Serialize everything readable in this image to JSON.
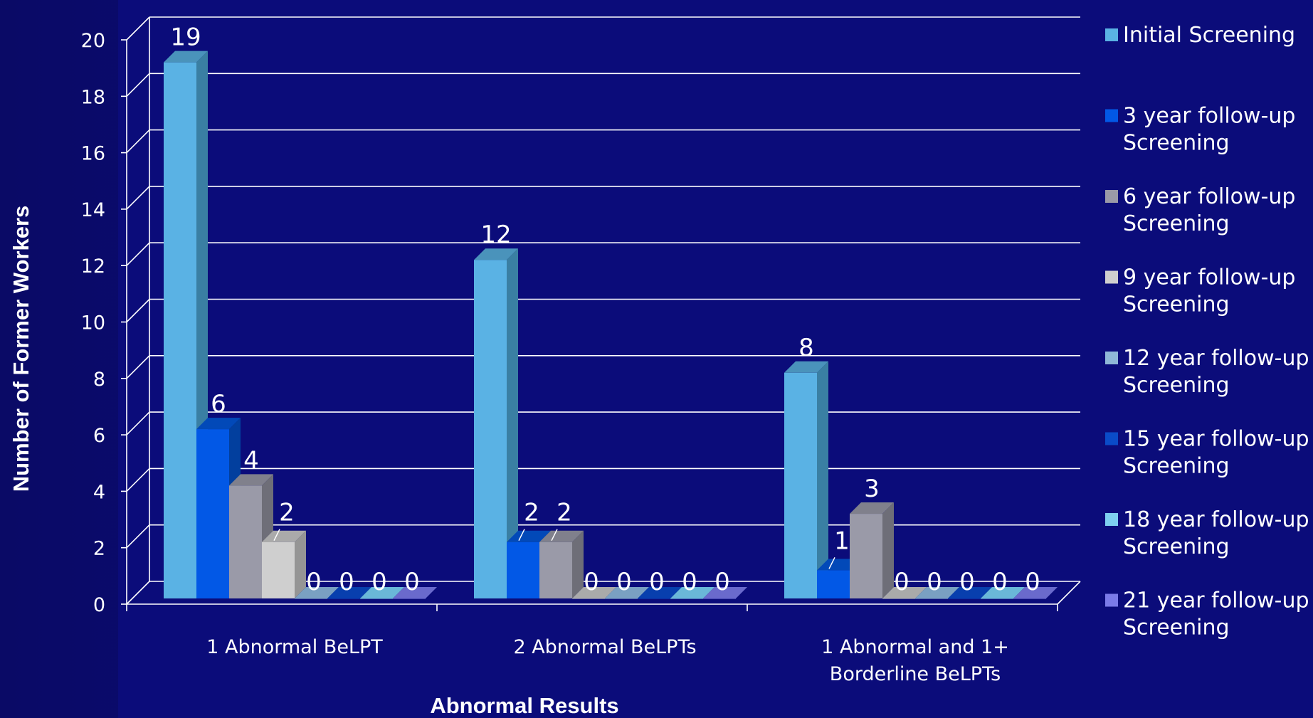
{
  "chart_data": {
    "type": "bar",
    "title": "",
    "xlabel": "Abnormal Results",
    "ylabel": "Number of Former Workers",
    "ylim": [
      0,
      20
    ],
    "yticks": [
      0,
      2,
      4,
      6,
      8,
      10,
      12,
      14,
      16,
      18,
      20
    ],
    "grid": true,
    "legend_position": "right",
    "categories": [
      [
        "1 Abnormal BeLPT"
      ],
      [
        "2 Abnormal BeLPTs"
      ],
      [
        "1 Abnormal and 1+",
        "Borderline BeLPTs"
      ]
    ],
    "series": [
      {
        "name": [
          "Initial Screening"
        ],
        "values": [
          19,
          12,
          8
        ],
        "color": "#5ab2e4",
        "side": "#3a7fa3",
        "top": "#4a93bb"
      },
      {
        "name": [
          "3 year follow-up",
          "Screening"
        ],
        "values": [
          6,
          2,
          1
        ],
        "color": "#0258e6",
        "side": "#023f9e",
        "top": "#0249b8"
      },
      {
        "name": [
          "6 year follow-up",
          "Screening"
        ],
        "values": [
          4,
          2,
          3
        ],
        "color": "#9a9aa8",
        "side": "#6e6e78",
        "top": "#80808c"
      },
      {
        "name": [
          "9 year follow-up",
          "Screening"
        ],
        "values": [
          2,
          0,
          0
        ],
        "color": "#cfcfcf",
        "side": "#959595",
        "top": "#aaaaaa"
      },
      {
        "name": [
          "12 year follow-up",
          "Screening"
        ],
        "values": [
          0,
          0,
          0
        ],
        "color": "#8fb8d8",
        "side": "#6a8fb0",
        "top": "#7aa0c2"
      },
      {
        "name": [
          "15 year follow-up",
          "Screening"
        ],
        "values": [
          0,
          0,
          0
        ],
        "color": "#0a4bc8",
        "side": "#073695",
        "top": "#083fae"
      },
      {
        "name": [
          "18 year follow-up",
          "Screening"
        ],
        "values": [
          0,
          0,
          0
        ],
        "color": "#7ecff0",
        "side": "#5aa3c4",
        "top": "#6ab8d8"
      },
      {
        "name": [
          "21 year follow-up",
          "Screening"
        ],
        "values": [
          0,
          0,
          0
        ],
        "color": "#7b7be8",
        "side": "#5a5ab5",
        "top": "#6a6acc"
      }
    ]
  }
}
